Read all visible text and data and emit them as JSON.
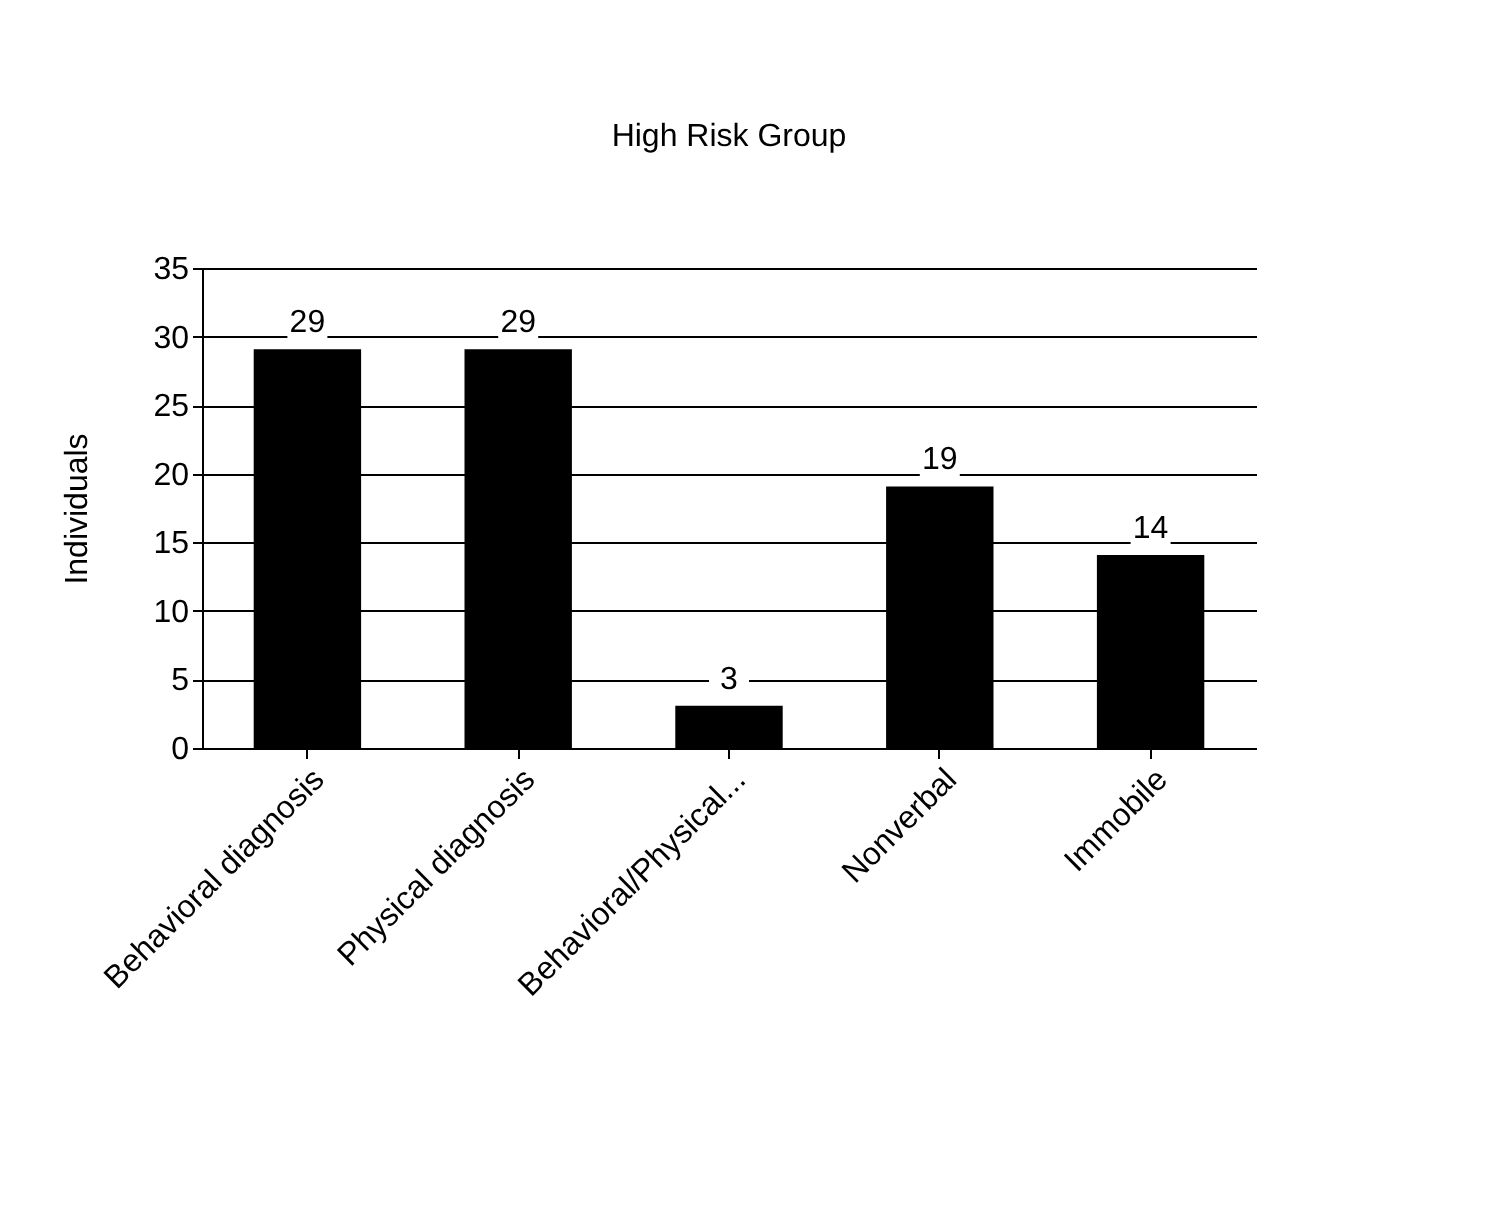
{
  "chart_data": {
    "type": "bar",
    "title": "High Risk Group",
    "ylabel": "Individuals",
    "categories": [
      "Behavioral diagnosis",
      "Physical diagnosis",
      "Behavioral/Physical...",
      "Nonverbal",
      "Immobile"
    ],
    "values": [
      29,
      29,
      3,
      19,
      14
    ],
    "color": "#000000",
    "ylim": [
      0,
      35
    ],
    "yticks": [
      0,
      5,
      10,
      15,
      20,
      25,
      30,
      35
    ],
    "grid": "y",
    "data_labels": true
  }
}
